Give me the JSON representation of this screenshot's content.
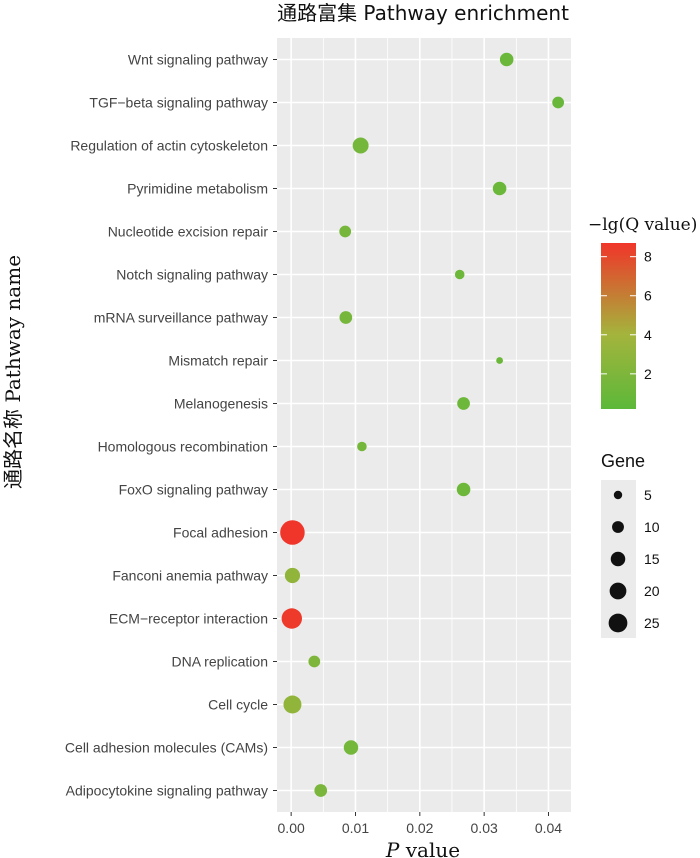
{
  "chart_data": {
    "type": "scatter",
    "title": "通路富集  Pathway enrichment",
    "xlabel_italic": "P",
    "xlabel_rest": " value",
    "ylabel": "通路名称  Pathway name",
    "xlim": [
      -0.0022,
      0.0435
    ],
    "x_ticks": [
      0.0,
      0.01,
      0.02,
      0.03,
      0.04
    ],
    "x_tick_labels": [
      "0.00",
      "0.01",
      "0.02",
      "0.03",
      "0.04"
    ],
    "grid": true,
    "categories": [
      "Wnt signaling pathway",
      "TGF−beta signaling pathway",
      "Regulation of actin cytoskeleton",
      "Pyrimidine metabolism",
      "Nucleotide excision repair",
      "Notch signaling pathway",
      "mRNA surveillance pathway",
      "Mismatch repair",
      "Melanogenesis",
      "Homologous recombination",
      "FoxO signaling pathway",
      "Focal adhesion",
      "Fanconi anemia pathway",
      "ECM−receptor interaction",
      "DNA replication",
      "Cell cycle",
      "Cell adhesion molecules (CAMs)",
      "Adipocytokine signaling pathway"
    ],
    "points": [
      {
        "pathway": "Wnt signaling pathway",
        "p_value": 0.0335,
        "neg_log_q": 1.0,
        "gene": 8
      },
      {
        "pathway": "TGF−beta signaling pathway",
        "p_value": 0.0415,
        "neg_log_q": 0.9,
        "gene": 6
      },
      {
        "pathway": "Regulation of actin cytoskeleton",
        "p_value": 0.0108,
        "neg_log_q": 1.5,
        "gene": 11
      },
      {
        "pathway": "Pyrimidine metabolism",
        "p_value": 0.0324,
        "neg_log_q": 1.0,
        "gene": 8
      },
      {
        "pathway": "Nucleotide excision repair",
        "p_value": 0.0084,
        "neg_log_q": 1.6,
        "gene": 6
      },
      {
        "pathway": "Notch signaling pathway",
        "p_value": 0.0262,
        "neg_log_q": 1.1,
        "gene": 4
      },
      {
        "pathway": "mRNA surveillance pathway",
        "p_value": 0.0085,
        "neg_log_q": 1.6,
        "gene": 7
      },
      {
        "pathway": "Mismatch repair",
        "p_value": 0.0324,
        "neg_log_q": 1.0,
        "gene": 2
      },
      {
        "pathway": "Melanogenesis",
        "p_value": 0.0268,
        "neg_log_q": 1.1,
        "gene": 7
      },
      {
        "pathway": "Homologous recombination",
        "p_value": 0.011,
        "neg_log_q": 1.5,
        "gene": 4
      },
      {
        "pathway": "FoxO signaling pathway",
        "p_value": 0.0268,
        "neg_log_q": 1.1,
        "gene": 8
      },
      {
        "pathway": "Focal adhesion",
        "p_value": 0.0002,
        "neg_log_q": 8.7,
        "gene": 26
      },
      {
        "pathway": "Fanconi anemia pathway",
        "p_value": 0.0002,
        "neg_log_q": 3.0,
        "gene": 10
      },
      {
        "pathway": "ECM−receptor interaction",
        "p_value": 0.0001,
        "neg_log_q": 8.5,
        "gene": 18
      },
      {
        "pathway": "DNA replication",
        "p_value": 0.0036,
        "neg_log_q": 2.0,
        "gene": 6
      },
      {
        "pathway": "Cell cycle",
        "p_value": 0.0002,
        "neg_log_q": 3.0,
        "gene": 14
      },
      {
        "pathway": "Cell adhesion molecules (CAMs)",
        "p_value": 0.0093,
        "neg_log_q": 1.5,
        "gene": 9
      },
      {
        "pathway": "Adipocytokine signaling pathway",
        "p_value": 0.0046,
        "neg_log_q": 1.8,
        "gene": 7
      }
    ],
    "color_legend": {
      "title": "−lg(Q value)",
      "min": 0.2,
      "max": 8.7,
      "ticks": [
        2,
        4,
        6,
        8
      ],
      "tick_labels": [
        "2",
        "4",
        "6",
        "8"
      ],
      "color_low": "#5cb83a",
      "color_mid": "#a4b43c",
      "color_high": "#f0352a"
    },
    "size_legend": {
      "title": "Gene",
      "values": [
        5,
        10,
        15,
        20,
        25
      ],
      "labels": [
        "5",
        "10",
        "15",
        "20",
        "25"
      ]
    },
    "panel_background": "#ebebeb",
    "grid_color": "#ffffff",
    "point_color_range_note": "colour mapped from neg_log_q"
  }
}
